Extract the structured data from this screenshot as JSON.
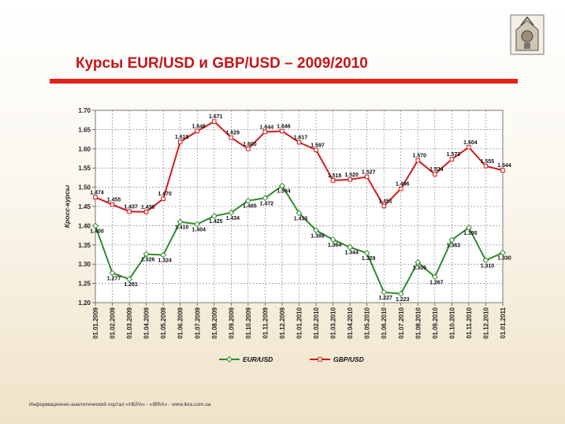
{
  "slide": {
    "title": "Курсы EUR/USD и GBP/USD – 2009/2010",
    "footer": "Информационно-аналитический   портал  «НБРА» - «IBRA» - www.ibra.com.ua",
    "logo": "coat-of-arms-emblem"
  },
  "colors": {
    "title": "#c4161c",
    "rule": "#e2231a",
    "eur": "#2e8b2e",
    "gbp": "#d11a1a"
  },
  "chart_data": {
    "type": "line",
    "title": "",
    "xlabel": "",
    "ylabel": "Кросс-курсы",
    "ylim": [
      1.2,
      1.7
    ],
    "yticks": [
      "1.20",
      "1.25",
      "1.30",
      "1.35",
      "1.40",
      "1.45",
      "1.50",
      "1.55",
      "1.60",
      "1.65",
      "1.70"
    ],
    "grid": true,
    "legend_position": "bottom",
    "categories": [
      "01.01.2009",
      "01.02.2009",
      "01.03.2009",
      "01.04.2009",
      "01.05.2009",
      "01.06.2009",
      "01.07.2009",
      "01.08.2009",
      "01.09.2009",
      "01.10.2009",
      "01.11.2009",
      "01.12.2009",
      "01.01.2010",
      "01.02.2010",
      "01.03.2010",
      "01.04.2010",
      "01.05.2010",
      "01.06.2010",
      "01.07.2010",
      "01.08.2010",
      "01.09.2010",
      "01.10.2010",
      "01.11.2010",
      "01.12.2010",
      "01.01.2011"
    ],
    "series": [
      {
        "name": "EUR/USD",
        "color": "#2e8b2e",
        "values": [
          1.4,
          1.277,
          1.261,
          1.326,
          1.324,
          1.41,
          1.404,
          1.425,
          1.434,
          1.465,
          1.472,
          1.504,
          1.433,
          1.388,
          1.364,
          1.344,
          1.329,
          1.227,
          1.223,
          1.305,
          1.267,
          1.363,
          1.395,
          1.31,
          1.33
        ],
        "labels": [
          "1.400",
          "1.277",
          "1.261",
          "1.326",
          "1.324",
          "1.410",
          "1.404",
          "1.425",
          "1.434",
          "1.465",
          "1.472",
          "1.504",
          "1.433",
          "1.388",
          "1.364",
          "1.344",
          "1.329",
          "1.227",
          "1.223",
          "1.305",
          "1.267",
          "1.363",
          "1.395",
          "1.310",
          "1.330"
        ]
      },
      {
        "name": "GBP/USD",
        "color": "#d11a1a",
        "values": [
          1.474,
          1.455,
          1.437,
          1.436,
          1.47,
          1.618,
          1.646,
          1.671,
          1.629,
          1.6,
          1.644,
          1.646,
          1.617,
          1.597,
          1.518,
          1.52,
          1.527,
          1.451,
          1.496,
          1.57,
          1.534,
          1.573,
          1.604,
          1.555,
          1.544
        ],
        "labels": [
          "1.474",
          "1.455",
          "1.437",
          "1.436",
          "1.470",
          "1.618",
          "1.646",
          "1.671",
          "1.629",
          "1.600",
          "1.644",
          "1.646",
          "1.617",
          "1.597",
          "1.518",
          "1.520",
          "1.527",
          "1.451",
          "1.496",
          "1.570",
          "1.534",
          "1.573",
          "1.604",
          "1.555",
          "1.544"
        ]
      }
    ]
  }
}
